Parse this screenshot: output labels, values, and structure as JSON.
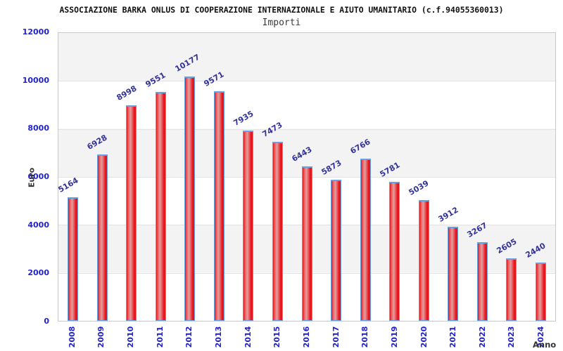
{
  "header": {
    "title": "ASSOCIAZIONE BARKA ONLUS DI COOPERAZIONE INTERNAZIONALE E AIUTO UMANITARIO (c.f.94055360013)",
    "subtitle": "Importi"
  },
  "chart_data": {
    "type": "bar",
    "title": "ASSOCIAZIONE BARKA ONLUS DI COOPERAZIONE INTERNAZIONALE E AIUTO UMANITARIO (c.f.94055360013)",
    "subtitle": "Importi",
    "xlabel": "Anno",
    "ylabel": "Euro",
    "categories": [
      "2008",
      "2009",
      "2010",
      "2011",
      "2012",
      "2013",
      "2014",
      "2015",
      "2016",
      "2017",
      "2018",
      "2019",
      "2020",
      "2021",
      "2022",
      "2023",
      "2024"
    ],
    "values": [
      5164,
      6928,
      8998,
      9551,
      10177,
      9571,
      7935,
      7473,
      6443,
      5873,
      6766,
      5781,
      5039,
      3912,
      3267,
      2605,
      2440
    ],
    "ylim": [
      0,
      12000
    ],
    "y_ticks": [
      12000,
      10000,
      8000,
      6000,
      4000,
      2000,
      0
    ],
    "grid": true,
    "legend": "none",
    "colors": {
      "tick_label": "#2222cc",
      "value_label": "#333399",
      "axis_title": "#333333",
      "bar_border": "#66a1e3",
      "bar_fill_edge": "#e3181e",
      "bar_fill_mid": "#ee5b5e",
      "bar_fill_highlight": "#dda0a2",
      "band_gray": "#f3f3f3",
      "band_white": "#ffffff",
      "gridline": "#e2e2e2",
      "plot_border": "#c9c9c9"
    }
  }
}
